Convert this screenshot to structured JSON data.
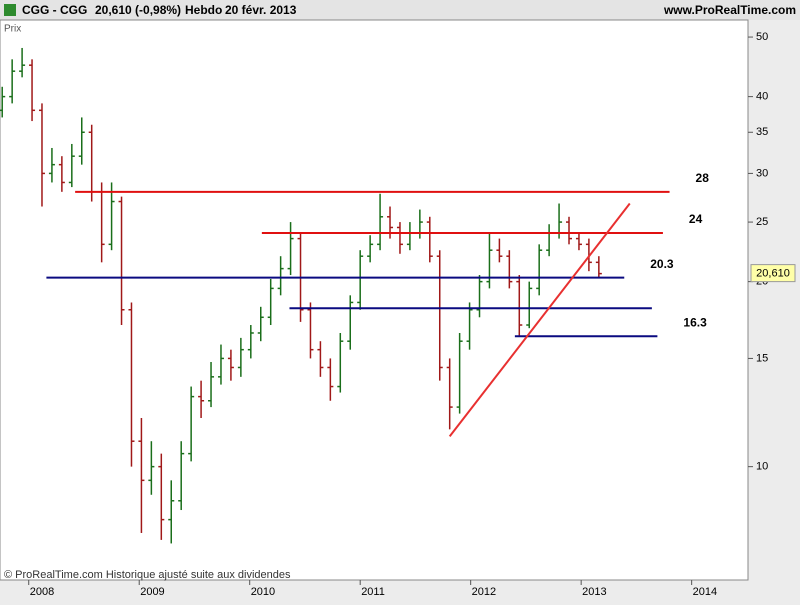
{
  "header": {
    "symbol": "CGG - CGG",
    "quote": "20,610 (-0,98%)",
    "period": "Hebdo",
    "date": "20 févr. 2013",
    "site": "www.ProRealTime.com"
  },
  "footer": "© ProRealTime.com Historique ajusté suite aux dividendes",
  "chart_data": {
    "type": "ohlc",
    "y_label": "Prix",
    "log_scale": true,
    "up_color": "#1a6e1a",
    "down_color": "#a01818",
    "x": [
      2007.76,
      2007.85,
      2007.94,
      2008.03,
      2008.12,
      2008.21,
      2008.3,
      2008.39,
      2008.48,
      2008.57,
      2008.66,
      2008.75,
      2008.84,
      2008.93,
      2009.02,
      2009.11,
      2009.2,
      2009.29,
      2009.38,
      2009.47,
      2009.56,
      2009.65,
      2009.74,
      2009.83,
      2009.92,
      2010.01,
      2010.1,
      2010.19,
      2010.28,
      2010.37,
      2010.46,
      2010.55,
      2010.64,
      2010.73,
      2010.82,
      2010.91,
      2011.0,
      2011.09,
      2011.18,
      2011.27,
      2011.36,
      2011.45,
      2011.54,
      2011.63,
      2011.72,
      2011.81,
      2011.9,
      2011.99,
      2012.08,
      2012.17,
      2012.26,
      2012.35,
      2012.44,
      2012.53,
      2012.62,
      2012.71,
      2012.8,
      2012.89,
      2012.98,
      2013.07,
      2013.16
    ],
    "open": [
      38,
      40,
      44,
      45,
      38,
      30,
      31,
      29,
      32,
      35,
      28,
      23,
      27,
      18,
      11,
      9.5,
      10,
      8.2,
      8.8,
      10.5,
      13,
      12.8,
      14,
      15,
      14.5,
      15.5,
      16.5,
      17.5,
      19.5,
      21,
      23.5,
      18,
      15.5,
      14.5,
      13.5,
      16,
      18.5,
      22,
      23,
      25.5,
      24.5,
      23,
      24,
      25,
      22,
      14.5,
      12.5,
      16,
      18,
      20,
      22.5,
      22,
      20,
      17,
      19.5,
      22.5,
      24,
      25,
      23.5,
      23,
      21.5
    ],
    "high": [
      41.5,
      46,
      48,
      46,
      39,
      33,
      32,
      33.5,
      37,
      36,
      29,
      29,
      27.5,
      18.5,
      12,
      11,
      10.5,
      9.5,
      11,
      13.5,
      13.8,
      14.8,
      15.8,
      15.5,
      16.2,
      17,
      18.2,
      20.2,
      22,
      25,
      24,
      18.5,
      16,
      15,
      16.5,
      19,
      22.5,
      23.8,
      27.8,
      26.5,
      25,
      25,
      26.2,
      25.5,
      22.5,
      15,
      16.5,
      18.5,
      20.5,
      24,
      23.5,
      22.5,
      20.5,
      20,
      23,
      24.8,
      26.8,
      25.5,
      24,
      23.5,
      22
    ],
    "low": [
      37,
      39,
      43,
      36.5,
      26.5,
      29,
      28,
      28.5,
      31,
      27,
      21.5,
      22.5,
      17,
      10,
      7.8,
      9,
      7.6,
      7.5,
      8.5,
      10.2,
      12,
      12.5,
      13.6,
      13.8,
      14,
      15,
      16,
      17,
      19,
      20.5,
      17.2,
      15,
      14,
      12.8,
      13.2,
      15.5,
      18,
      21.5,
      22.5,
      23.5,
      22.2,
      22.5,
      23.5,
      21.5,
      13.8,
      11.5,
      12.2,
      15.5,
      17.5,
      19.5,
      21.5,
      19.5,
      16.3,
      16.8,
      19,
      22,
      23.5,
      23,
      22.5,
      20.8,
      20.3
    ],
    "close": [
      40,
      44,
      45,
      38,
      30,
      31,
      29,
      32,
      35,
      28,
      23,
      27,
      18,
      11,
      9.5,
      10,
      8.2,
      8.8,
      10.5,
      13,
      12.8,
      14,
      15,
      14.5,
      15.5,
      16.5,
      17.5,
      19.5,
      21,
      23.5,
      18,
      15.5,
      14.5,
      13.5,
      16,
      18.5,
      22,
      23,
      25.5,
      24.5,
      23,
      24,
      25,
      22,
      14.5,
      12.5,
      16,
      18,
      20,
      22.5,
      22,
      20,
      17,
      19.5,
      22.5,
      24,
      25,
      23.5,
      23,
      21.5,
      20.61
    ],
    "xlim": [
      2007.74,
      2014.51
    ],
    "xticks": [
      2008,
      2009,
      2010,
      2011,
      2012,
      2013,
      2014
    ],
    "ylim": [
      6.54,
      53.3
    ],
    "yticks": [
      10,
      15,
      20,
      25,
      30,
      35,
      40,
      50
    ],
    "last_price": {
      "value": 20.61,
      "label": "20,610"
    },
    "levels": [
      {
        "value": 28,
        "x_start": 2008.42,
        "x_end": 2013.8,
        "color": "#e01010",
        "show_label": true
      },
      {
        "value": 24,
        "x_start": 2010.11,
        "x_end": 2013.74,
        "color": "#e01010",
        "show_label": true
      },
      {
        "value": 20.3,
        "x_start": 2008.16,
        "x_end": 2013.39,
        "color": "#0a0a80",
        "show_label": true
      },
      {
        "value": 18.1,
        "x_start": 2010.36,
        "x_end": 2013.64,
        "color": "#0a0a80",
        "show_label": false
      },
      {
        "value": 16.3,
        "x_start": 2012.4,
        "x_end": 2013.69,
        "color": "#0a0a80",
        "show_label": true
      }
    ],
    "trendline": {
      "x": [
        2011.81,
        2013.44
      ],
      "y": [
        11.2,
        26.8
      ],
      "color": "#e83030"
    }
  }
}
